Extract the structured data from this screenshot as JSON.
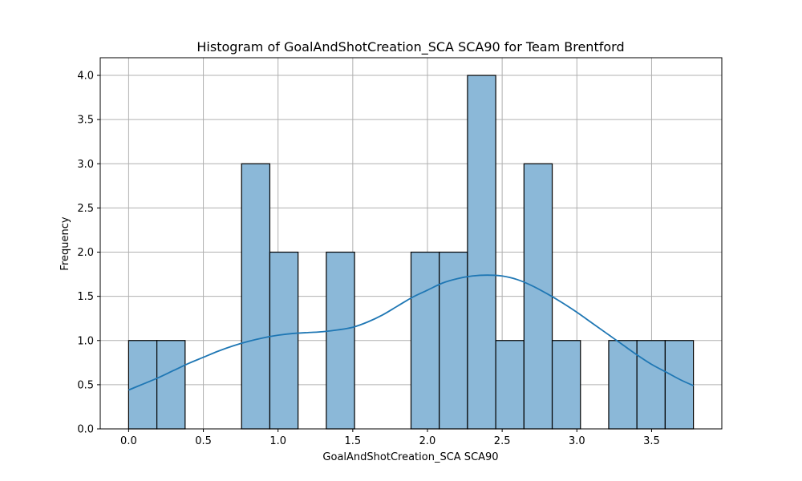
{
  "chart_data": {
    "type": "histogram",
    "title": "Histogram of GoalAndShotCreation_SCA SCA90 for Team Brentford",
    "xlabel": "GoalAndShotCreation_SCA SCA90",
    "ylabel": "Frequency",
    "xlim": [
      -0.19,
      3.97
    ],
    "ylim": [
      0,
      4.2
    ],
    "x_ticks": [
      0.0,
      0.5,
      1.0,
      1.5,
      2.0,
      2.5,
      3.0,
      3.5
    ],
    "x_tick_labels": [
      "0.0",
      "0.5",
      "1.0",
      "1.5",
      "2.0",
      "2.5",
      "3.0",
      "3.5"
    ],
    "y_ticks": [
      0,
      0.5,
      1.0,
      1.5,
      2.0,
      2.5,
      3.0,
      3.5,
      4.0
    ],
    "y_tick_labels": [
      "0.0",
      "0.5",
      "1.0",
      "1.5",
      "2.0",
      "2.5",
      "3.0",
      "3.5",
      "4.0"
    ],
    "grid": true,
    "bar_color": "#8bb8d8",
    "bar_edge_color": "#000000",
    "kde_color": "#1f77b4",
    "bins": [
      {
        "start": 0.0,
        "end": 0.189,
        "count": 1
      },
      {
        "start": 0.189,
        "end": 0.378,
        "count": 1
      },
      {
        "start": 0.378,
        "end": 0.567,
        "count": 0
      },
      {
        "start": 0.567,
        "end": 0.756,
        "count": 0
      },
      {
        "start": 0.756,
        "end": 0.945,
        "count": 3
      },
      {
        "start": 0.945,
        "end": 1.134,
        "count": 2
      },
      {
        "start": 1.134,
        "end": 1.323,
        "count": 0
      },
      {
        "start": 1.323,
        "end": 1.512,
        "count": 2
      },
      {
        "start": 1.512,
        "end": 1.701,
        "count": 0
      },
      {
        "start": 1.701,
        "end": 1.89,
        "count": 0
      },
      {
        "start": 1.89,
        "end": 2.079,
        "count": 2
      },
      {
        "start": 2.079,
        "end": 2.268,
        "count": 2
      },
      {
        "start": 2.268,
        "end": 2.457,
        "count": 4
      },
      {
        "start": 2.457,
        "end": 2.646,
        "count": 1
      },
      {
        "start": 2.646,
        "end": 2.835,
        "count": 3
      },
      {
        "start": 2.835,
        "end": 3.024,
        "count": 1
      },
      {
        "start": 3.024,
        "end": 3.213,
        "count": 0
      },
      {
        "start": 3.213,
        "end": 3.402,
        "count": 1
      },
      {
        "start": 3.402,
        "end": 3.591,
        "count": 1
      },
      {
        "start": 3.591,
        "end": 3.78,
        "count": 1
      }
    ],
    "kde": {
      "x": [
        0.0,
        0.1,
        0.2,
        0.3,
        0.4,
        0.5,
        0.6,
        0.7,
        0.8,
        0.9,
        1.0,
        1.1,
        1.2,
        1.3,
        1.4,
        1.5,
        1.6,
        1.7,
        1.8,
        1.9,
        2.0,
        2.1,
        2.2,
        2.3,
        2.4,
        2.5,
        2.6,
        2.7,
        2.8,
        2.9,
        3.0,
        3.1,
        3.2,
        3.3,
        3.4,
        3.5,
        3.6,
        3.7,
        3.78
      ],
      "y": [
        0.44,
        0.51,
        0.58,
        0.66,
        0.74,
        0.81,
        0.88,
        0.94,
        0.99,
        1.03,
        1.06,
        1.08,
        1.09,
        1.1,
        1.12,
        1.15,
        1.21,
        1.29,
        1.39,
        1.49,
        1.57,
        1.65,
        1.7,
        1.73,
        1.74,
        1.73,
        1.69,
        1.62,
        1.53,
        1.43,
        1.32,
        1.2,
        1.08,
        0.96,
        0.84,
        0.73,
        0.64,
        0.55,
        0.49
      ]
    }
  }
}
